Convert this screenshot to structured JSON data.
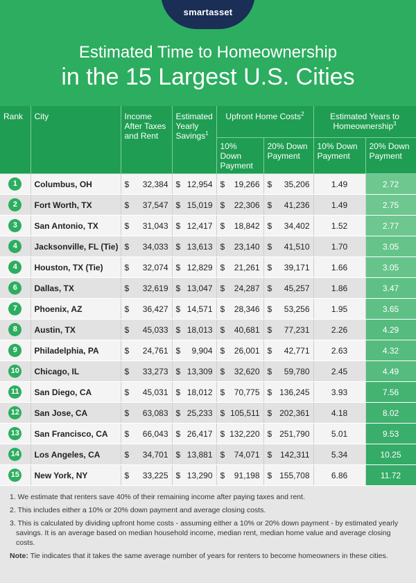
{
  "header": {
    "logo": "smartasset",
    "title_line1": "Estimated Time to Homeownership",
    "title_line2": "in the 15 Largest U.S. Cities"
  },
  "table": {
    "headers": {
      "rank": "Rank",
      "city": "City",
      "income": "Income After Taxes and Rent",
      "savings": "Estimated Yearly Savings",
      "savings_sup": "1",
      "upfront": "Upfront Home Costs",
      "upfront_sup": "2",
      "years": "Estimated Years to Homeownership",
      "years_sup": "3",
      "down10": "10% Down Payment",
      "down20": "20% Down Payment",
      "ydown10": "10% Down Payment",
      "ydown20": "20% Down Payment"
    },
    "rows": [
      {
        "rank": "1",
        "city": "Columbus, OH",
        "income": "32,384",
        "savings": "12,954",
        "up10": "19,266",
        "up20": "35,206",
        "y10": "1.49",
        "y20": "2.72"
      },
      {
        "rank": "2",
        "city": "Fort Worth, TX",
        "income": "37,547",
        "savings": "15,019",
        "up10": "22,306",
        "up20": "41,236",
        "y10": "1.49",
        "y20": "2.75"
      },
      {
        "rank": "3",
        "city": "San Antonio, TX",
        "income": "31,043",
        "savings": "12,417",
        "up10": "18,842",
        "up20": "34,402",
        "y10": "1.52",
        "y20": "2.77"
      },
      {
        "rank": "4",
        "city": "Jacksonville, FL (Tie)",
        "income": "34,033",
        "savings": "13,613",
        "up10": "23,140",
        "up20": "41,510",
        "y10": "1.70",
        "y20": "3.05"
      },
      {
        "rank": "4",
        "city": "Houston, TX (Tie)",
        "income": "32,074",
        "savings": "12,829",
        "up10": "21,261",
        "up20": "39,171",
        "y10": "1.66",
        "y20": "3.05"
      },
      {
        "rank": "6",
        "city": "Dallas, TX",
        "income": "32,619",
        "savings": "13,047",
        "up10": "24,287",
        "up20": "45,257",
        "y10": "1.86",
        "y20": "3.47"
      },
      {
        "rank": "7",
        "city": "Phoenix, AZ",
        "income": "36,427",
        "savings": "14,571",
        "up10": "28,346",
        "up20": "53,256",
        "y10": "1.95",
        "y20": "3.65"
      },
      {
        "rank": "8",
        "city": "Austin, TX",
        "income": "45,033",
        "savings": "18,013",
        "up10": "40,681",
        "up20": "77,231",
        "y10": "2.26",
        "y20": "4.29"
      },
      {
        "rank": "9",
        "city": "Philadelphia, PA",
        "income": "24,761",
        "savings": "9,904",
        "up10": "26,001",
        "up20": "42,771",
        "y10": "2.63",
        "y20": "4.32"
      },
      {
        "rank": "10",
        "city": "Chicago, IL",
        "income": "33,273",
        "savings": "13,309",
        "up10": "32,620",
        "up20": "59,780",
        "y10": "2.45",
        "y20": "4.49"
      },
      {
        "rank": "11",
        "city": "San Diego, CA",
        "income": "45,031",
        "savings": "18,012",
        "up10": "70,775",
        "up20": "136,245",
        "y10": "3.93",
        "y20": "7.56"
      },
      {
        "rank": "12",
        "city": "San Jose, CA",
        "income": "63,083",
        "savings": "25,233",
        "up10": "105,511",
        "up20": "202,361",
        "y10": "4.18",
        "y20": "8.02"
      },
      {
        "rank": "13",
        "city": "San Francisco, CA",
        "income": "66,043",
        "savings": "26,417",
        "up10": "132,220",
        "up20": "251,790",
        "y10": "5.01",
        "y20": "9.53"
      },
      {
        "rank": "14",
        "city": "Los Angeles, CA",
        "income": "34,701",
        "savings": "13,881",
        "up10": "74,071",
        "up20": "142,311",
        "y10": "5.34",
        "y20": "10.25"
      },
      {
        "rank": "15",
        "city": "New York, NY",
        "income": "33,225",
        "savings": "13,290",
        "up10": "91,198",
        "up20": "155,708",
        "y10": "6.86",
        "y20": "11.72"
      }
    ],
    "y20_colors": [
      "#6dc78f",
      "#6dc78f",
      "#6dc78f",
      "#66c48a",
      "#66c48a",
      "#5ec085",
      "#5ec085",
      "#55bb7e",
      "#55bb7e",
      "#55bb7e",
      "#44b372",
      "#40b16f",
      "#3aae6b",
      "#34ab67",
      "#34ab67"
    ]
  },
  "notes": {
    "n1": "1.  We estimate that renters save 40% of their remaining income after paying taxes and rent.",
    "n2": "2. This includes either a 10% or 20% down payment and average closing costs.",
    "n3": "3. This is calculated by dividing upfront home costs - assuming either a 10% or 20% down payment - by estimated yearly savings. It is an average based on median household income, median rent, median home value and average closing costs.",
    "note_label": "Note:",
    "note_text": " Tie indicates that it takes the same average number of years for renters to become homeowners in these cities."
  }
}
